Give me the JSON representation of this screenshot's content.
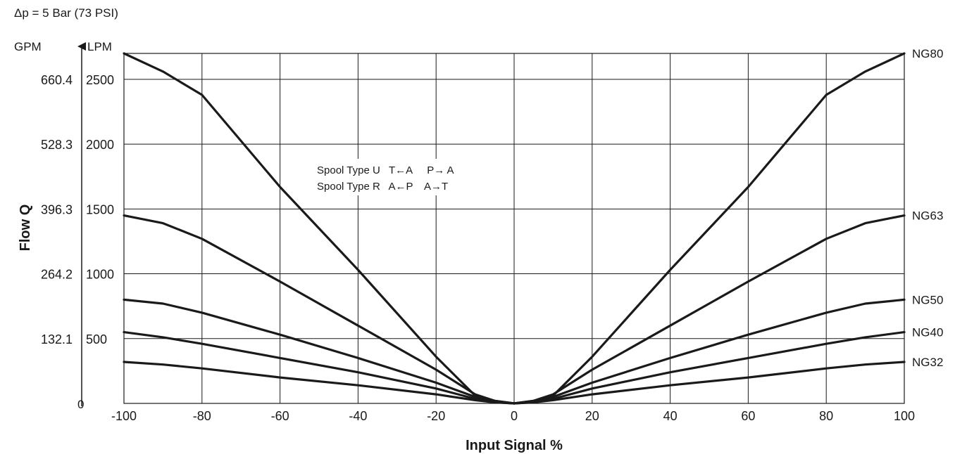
{
  "chart_data": {
    "type": "line",
    "header_note": "Δp = 5 Bar (73 PSI)",
    "xlabel": "Input Signal %",
    "ylabel": "Flow Q",
    "y_unit_primary": "LPM",
    "y_unit_secondary": "GPM",
    "xlim": [
      -100,
      100
    ],
    "ylim": [
      0,
      2700
    ],
    "x_ticks": [
      -100,
      -80,
      -60,
      -40,
      -20,
      0,
      20,
      40,
      60,
      80,
      100
    ],
    "y_ticks_lpm": [
      {
        "value": 500,
        "label": "500"
      },
      {
        "value": 1000,
        "label": "1000"
      },
      {
        "value": 1500,
        "label": "1500"
      },
      {
        "value": 2000,
        "label": "2000"
      },
      {
        "value": 2500,
        "label": "2500"
      }
    ],
    "y_ticks_gpm": [
      {
        "value": 500,
        "label": "132.1"
      },
      {
        "value": 1000,
        "label": "264.2"
      },
      {
        "value": 1500,
        "label": "396.3"
      },
      {
        "value": 2000,
        "label": "528.3"
      },
      {
        "value": 2500,
        "label": "660.4"
      }
    ],
    "zero_label": "0",
    "grid": true,
    "annotation": {
      "line1": "Spool Type U   T←A     P→ A",
      "line2": "Spool Type R   A←P    A→T"
    },
    "series": [
      {
        "name": "NG80",
        "x": [
          -100,
          -90,
          -80,
          -60,
          -40,
          -20,
          -10,
          -5,
          0,
          5,
          10,
          20,
          40,
          60,
          80,
          90,
          100
        ],
        "y": [
          2700,
          2560,
          2380,
          1670,
          1030,
          360,
          60,
          20,
          0,
          20,
          60,
          360,
          1030,
          1670,
          2380,
          2560,
          2700
        ]
      },
      {
        "name": "NG63",
        "x": [
          -100,
          -90,
          -80,
          -60,
          -40,
          -20,
          -10,
          -5,
          0,
          5,
          10,
          20,
          40,
          60,
          80,
          90,
          100
        ],
        "y": [
          1450,
          1390,
          1270,
          940,
          600,
          260,
          70,
          20,
          0,
          20,
          70,
          260,
          600,
          940,
          1270,
          1390,
          1450
        ]
      },
      {
        "name": "NG50",
        "x": [
          -100,
          -90,
          -80,
          -60,
          -40,
          -20,
          -10,
          -5,
          0,
          5,
          10,
          20,
          40,
          60,
          80,
          90,
          100
        ],
        "y": [
          800,
          770,
          700,
          530,
          350,
          160,
          50,
          15,
          0,
          15,
          50,
          160,
          350,
          530,
          700,
          770,
          800
        ]
      },
      {
        "name": "NG40",
        "x": [
          -100,
          -90,
          -80,
          -60,
          -40,
          -20,
          -10,
          -5,
          0,
          5,
          10,
          20,
          40,
          60,
          80,
          90,
          100
        ],
        "y": [
          550,
          510,
          460,
          350,
          240,
          115,
          35,
          10,
          0,
          10,
          35,
          115,
          240,
          350,
          460,
          510,
          550
        ]
      },
      {
        "name": "NG32",
        "x": [
          -100,
          -90,
          -80,
          -60,
          -40,
          -20,
          -10,
          -5,
          0,
          5,
          10,
          20,
          40,
          60,
          80,
          90,
          100
        ],
        "y": [
          320,
          300,
          270,
          200,
          140,
          70,
          25,
          8,
          0,
          8,
          25,
          70,
          140,
          200,
          270,
          300,
          320
        ]
      }
    ]
  }
}
